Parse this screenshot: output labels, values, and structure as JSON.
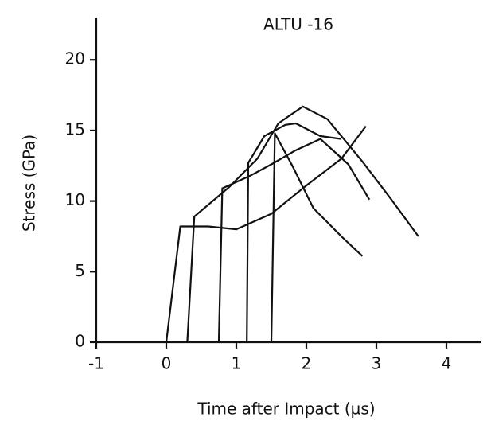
{
  "chart_data": {
    "type": "line",
    "title": "ALTU -16",
    "x_label": "Time after Impact (µs)",
    "y_label": "Stress (GPa)",
    "xlim": [
      -1,
      4.5
    ],
    "ylim": [
      0,
      23
    ],
    "xticks": [
      -1,
      0,
      1,
      2,
      3,
      4
    ],
    "yticks": [
      0,
      5,
      10,
      15,
      20
    ],
    "series": [
      {
        "color": "#111111",
        "x": [
          0,
          0.2,
          0.6,
          1.0,
          1.5,
          2.0,
          2.5,
          2.85
        ],
        "values": [
          0,
          8.2,
          8.2,
          8.0,
          9.1,
          11.1,
          13.0,
          15.3
        ]
      },
      {
        "color": "#111111",
        "x": [
          0.3,
          0.4,
          0.9,
          1.3,
          1.6,
          1.95,
          2.3,
          2.8,
          3.2,
          3.6
        ],
        "values": [
          0,
          8.9,
          11.0,
          13.0,
          15.5,
          16.7,
          15.8,
          12.8,
          10.2,
          7.5
        ]
      },
      {
        "color": "#111111",
        "x": [
          0.75,
          0.8,
          1.2,
          1.5,
          1.85,
          2.2,
          2.6,
          2.9
        ],
        "values": [
          0,
          10.9,
          11.8,
          12.6,
          13.6,
          14.4,
          12.6,
          10.1
        ]
      },
      {
        "color": "#111111",
        "x": [
          1.15,
          1.17,
          1.4,
          1.7,
          1.85,
          2.2,
          2.5
        ],
        "values": [
          0,
          12.7,
          14.6,
          15.4,
          15.5,
          14.6,
          14.4
        ]
      },
      {
        "color": "#111111",
        "x": [
          1.5,
          1.55,
          1.8,
          2.1,
          2.5,
          2.8
        ],
        "values": [
          0,
          14.8,
          12.5,
          9.5,
          7.5,
          6.1
        ]
      }
    ]
  }
}
